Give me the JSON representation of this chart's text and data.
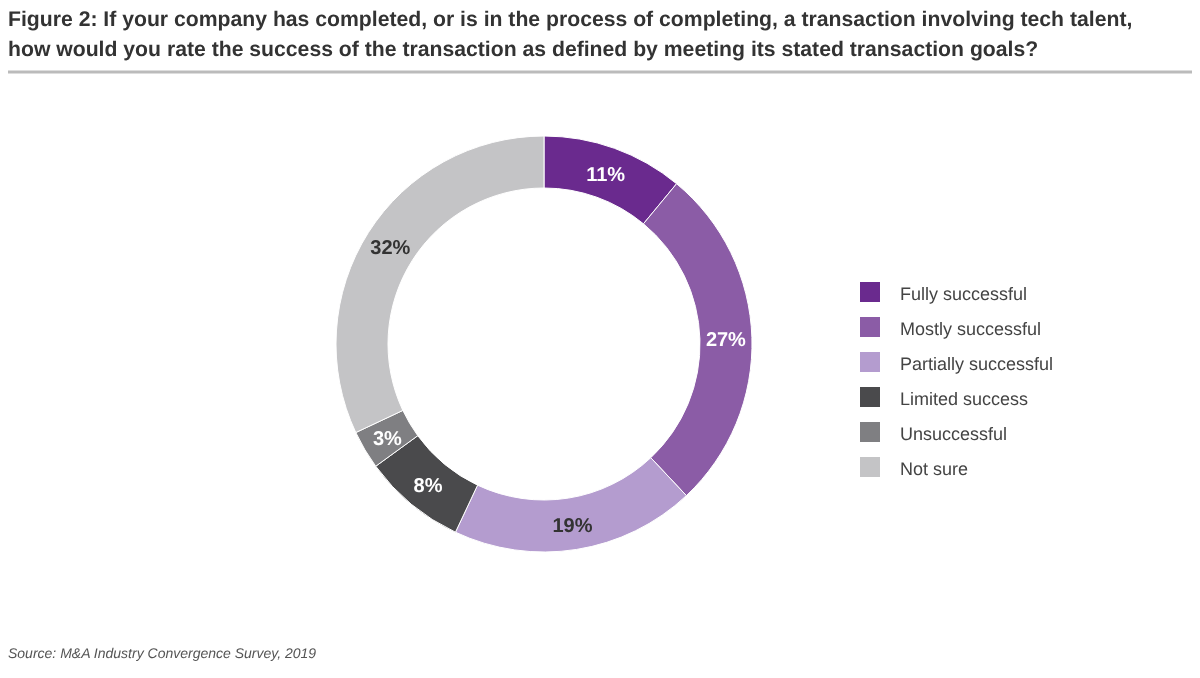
{
  "chart_data": {
    "type": "donut",
    "title": "Figure 2: If your company has completed, or is in the process of completing, a transaction involving tech talent, how would you rate the success of the transaction as defined by meeting its stated transaction goals?",
    "categories": [
      "Fully successful",
      "Mostly successful",
      "Partially successful",
      "Limited success",
      "Unsuccessful",
      "Not sure"
    ],
    "values": [
      11,
      27,
      19,
      8,
      3,
      32
    ],
    "colors": [
      "#6a2a8e",
      "#8b5ca6",
      "#b49ccf",
      "#4a4a4c",
      "#7f7f82",
      "#c4c4c6"
    ],
    "value_labels": [
      "11%",
      "27%",
      "19%",
      "8%",
      "3%",
      "32%"
    ],
    "legend": "right",
    "annotations": [
      "Source: M&A Industry Convergence Survey, 2019"
    ]
  }
}
